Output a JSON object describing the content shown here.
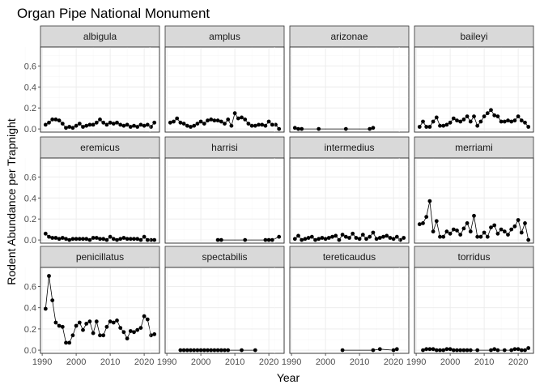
{
  "chart_data": {
    "type": "line",
    "title": "Organ Pipe National Monument",
    "xlabel": "Year",
    "ylabel": "Rodent Abundance per Trapnight",
    "xlim": [
      1989.5,
      2024.5
    ],
    "ylim": [
      -0.03,
      0.78
    ],
    "x_ticks": [
      1990,
      2000,
      2010,
      2020
    ],
    "y_ticks": [
      0.0,
      0.2,
      0.4,
      0.6
    ],
    "y_tick_labels": [
      "0.0",
      "0.2",
      "0.4",
      "0.6"
    ],
    "grid": true,
    "facet_columns": 4,
    "panels": [
      {
        "name": "albigula",
        "x": [
          1991,
          1992,
          1993,
          1994,
          1995,
          1996,
          1997,
          1998,
          1999,
          2000,
          2001,
          2002,
          2003,
          2004,
          2005,
          2006,
          2007,
          2008,
          2009,
          2010,
          2011,
          2012,
          2013,
          2014,
          2015,
          2016,
          2017,
          2018,
          2019,
          2020,
          2021,
          2022,
          2023
        ],
        "y": [
          0.04,
          0.06,
          0.09,
          0.09,
          0.08,
          0.05,
          0.01,
          0.02,
          0.01,
          0.03,
          0.05,
          0.02,
          0.03,
          0.04,
          0.04,
          0.06,
          0.09,
          0.06,
          0.04,
          0.06,
          0.05,
          0.06,
          0.04,
          0.03,
          0.04,
          0.02,
          0.03,
          0.02,
          0.04,
          0.03,
          0.04,
          0.02,
          0.06
        ]
      },
      {
        "name": "amplus",
        "x": [
          1991,
          1992,
          1993,
          1994,
          1995,
          1996,
          1997,
          1998,
          1999,
          2000,
          2001,
          2002,
          2003,
          2004,
          2005,
          2006,
          2007,
          2008,
          2009,
          2010,
          2011,
          2012,
          2013,
          2014,
          2015,
          2016,
          2017,
          2018,
          2019,
          2020,
          2021,
          2022,
          2023
        ],
        "y": [
          0.06,
          0.07,
          0.1,
          0.06,
          0.05,
          0.03,
          0.02,
          0.03,
          0.05,
          0.07,
          0.05,
          0.08,
          0.09,
          0.08,
          0.08,
          0.07,
          0.05,
          0.09,
          0.03,
          0.15,
          0.1,
          0.11,
          0.09,
          0.05,
          0.03,
          0.03,
          0.04,
          0.04,
          0.03,
          0.07,
          0.04,
          0.04,
          0.0
        ]
      },
      {
        "name": "arizonae",
        "x": [
          1991,
          1992,
          1993,
          1998,
          2006,
          2013,
          2014
        ],
        "y": [
          0.01,
          0.0,
          0.0,
          0.0,
          0.0,
          0.0,
          0.01
        ]
      },
      {
        "name": "baileyi",
        "x": [
          1991,
          1992,
          1993,
          1994,
          1995,
          1996,
          1997,
          1998,
          1999,
          2000,
          2001,
          2002,
          2003,
          2004,
          2005,
          2006,
          2007,
          2008,
          2009,
          2010,
          2011,
          2012,
          2013,
          2014,
          2015,
          2016,
          2017,
          2018,
          2019,
          2020,
          2021,
          2022,
          2023
        ],
        "y": [
          0.02,
          0.07,
          0.02,
          0.02,
          0.07,
          0.11,
          0.03,
          0.03,
          0.04,
          0.06,
          0.1,
          0.08,
          0.07,
          0.09,
          0.12,
          0.07,
          0.12,
          0.03,
          0.07,
          0.12,
          0.15,
          0.18,
          0.13,
          0.12,
          0.07,
          0.07,
          0.08,
          0.07,
          0.08,
          0.12,
          0.08,
          0.06,
          0.02
        ]
      },
      {
        "name": "eremicus",
        "x": [
          1991,
          1992,
          1993,
          1994,
          1995,
          1996,
          1997,
          1998,
          1999,
          2000,
          2001,
          2002,
          2003,
          2004,
          2005,
          2006,
          2007,
          2008,
          2009,
          2010,
          2011,
          2012,
          2013,
          2014,
          2015,
          2016,
          2017,
          2018,
          2019,
          2020,
          2021,
          2022,
          2023
        ],
        "y": [
          0.06,
          0.03,
          0.02,
          0.02,
          0.01,
          0.02,
          0.01,
          0.0,
          0.01,
          0.01,
          0.01,
          0.01,
          0.01,
          0.0,
          0.02,
          0.02,
          0.01,
          0.01,
          0.0,
          0.03,
          0.01,
          0.0,
          0.01,
          0.02,
          0.01,
          0.01,
          0.01,
          0.01,
          0.0,
          0.03,
          0.0,
          0.0,
          0.0
        ]
      },
      {
        "name": "harrisi",
        "x": [
          2005,
          2006,
          2013,
          2019,
          2020,
          2021,
          2023
        ],
        "y": [
          0.0,
          0.0,
          0.0,
          0.0,
          0.0,
          0.0,
          0.03
        ]
      },
      {
        "name": "intermedius",
        "x": [
          1991,
          1992,
          1993,
          1994,
          1995,
          1996,
          1997,
          1998,
          1999,
          2000,
          2001,
          2002,
          2003,
          2004,
          2005,
          2006,
          2007,
          2008,
          2009,
          2010,
          2011,
          2012,
          2013,
          2014,
          2015,
          2016,
          2017,
          2018,
          2019,
          2020,
          2021,
          2022,
          2023
        ],
        "y": [
          0.01,
          0.04,
          0.0,
          0.01,
          0.02,
          0.03,
          0.0,
          0.01,
          0.02,
          0.01,
          0.02,
          0.03,
          0.04,
          0.0,
          0.05,
          0.03,
          0.02,
          0.06,
          0.02,
          0.01,
          0.05,
          0.01,
          0.03,
          0.07,
          0.01,
          0.02,
          0.03,
          0.04,
          0.02,
          0.01,
          0.03,
          0.0,
          0.02
        ]
      },
      {
        "name": "merriami",
        "x": [
          1991,
          1992,
          1993,
          1994,
          1995,
          1996,
          1997,
          1998,
          1999,
          2000,
          2001,
          2002,
          2003,
          2004,
          2005,
          2006,
          2007,
          2008,
          2009,
          2010,
          2011,
          2012,
          2013,
          2014,
          2015,
          2016,
          2017,
          2018,
          2019,
          2020,
          2021,
          2022,
          2023
        ],
        "y": [
          0.15,
          0.16,
          0.22,
          0.37,
          0.08,
          0.18,
          0.03,
          0.03,
          0.08,
          0.06,
          0.1,
          0.09,
          0.05,
          0.11,
          0.16,
          0.08,
          0.23,
          0.03,
          0.03,
          0.07,
          0.03,
          0.12,
          0.14,
          0.06,
          0.1,
          0.08,
          0.05,
          0.1,
          0.13,
          0.19,
          0.07,
          0.16,
          0.0
        ]
      },
      {
        "name": "penicillatus",
        "x": [
          1991,
          1992,
          1993,
          1994,
          1995,
          1996,
          1997,
          1998,
          1999,
          2000,
          2001,
          2002,
          2003,
          2004,
          2005,
          2006,
          2007,
          2008,
          2009,
          2010,
          2011,
          2012,
          2013,
          2014,
          2015,
          2016,
          2017,
          2018,
          2019,
          2020,
          2021,
          2022,
          2023
        ],
        "y": [
          0.39,
          0.7,
          0.47,
          0.26,
          0.23,
          0.22,
          0.07,
          0.07,
          0.14,
          0.23,
          0.26,
          0.19,
          0.25,
          0.27,
          0.16,
          0.27,
          0.14,
          0.14,
          0.22,
          0.27,
          0.26,
          0.28,
          0.21,
          0.17,
          0.11,
          0.18,
          0.17,
          0.19,
          0.21,
          0.32,
          0.29,
          0.14,
          0.15
        ]
      },
      {
        "name": "spectabilis",
        "x": [
          1994,
          1995,
          1996,
          1997,
          1998,
          1999,
          2000,
          2001,
          2002,
          2003,
          2004,
          2005,
          2006,
          2007,
          2008,
          2012,
          2016
        ],
        "y": [
          0.0,
          0.0,
          0.0,
          0.0,
          0.0,
          0.0,
          0.0,
          0.0,
          0.0,
          0.0,
          0.0,
          0.0,
          0.0,
          0.0,
          0.0,
          0.0,
          0.0
        ]
      },
      {
        "name": "tereticaudus",
        "x": [
          2005,
          2014,
          2016,
          2020,
          2021
        ],
        "y": [
          0.0,
          0.0,
          0.01,
          0.0,
          0.01
        ]
      },
      {
        "name": "torridus",
        "x": [
          1992,
          1993,
          1994,
          1995,
          1996,
          1997,
          1998,
          1999,
          2000,
          2001,
          2002,
          2003,
          2004,
          2005,
          2006,
          2008,
          2012,
          2013,
          2014,
          2016,
          2018,
          2019,
          2020,
          2021,
          2022,
          2023
        ],
        "y": [
          0.0,
          0.01,
          0.01,
          0.01,
          0.0,
          0.0,
          0.0,
          0.01,
          0.01,
          0.0,
          0.0,
          0.0,
          0.0,
          0.0,
          0.0,
          0.0,
          0.0,
          0.01,
          0.0,
          0.0,
          0.0,
          0.01,
          0.01,
          0.0,
          0.0,
          0.02
        ]
      }
    ]
  }
}
